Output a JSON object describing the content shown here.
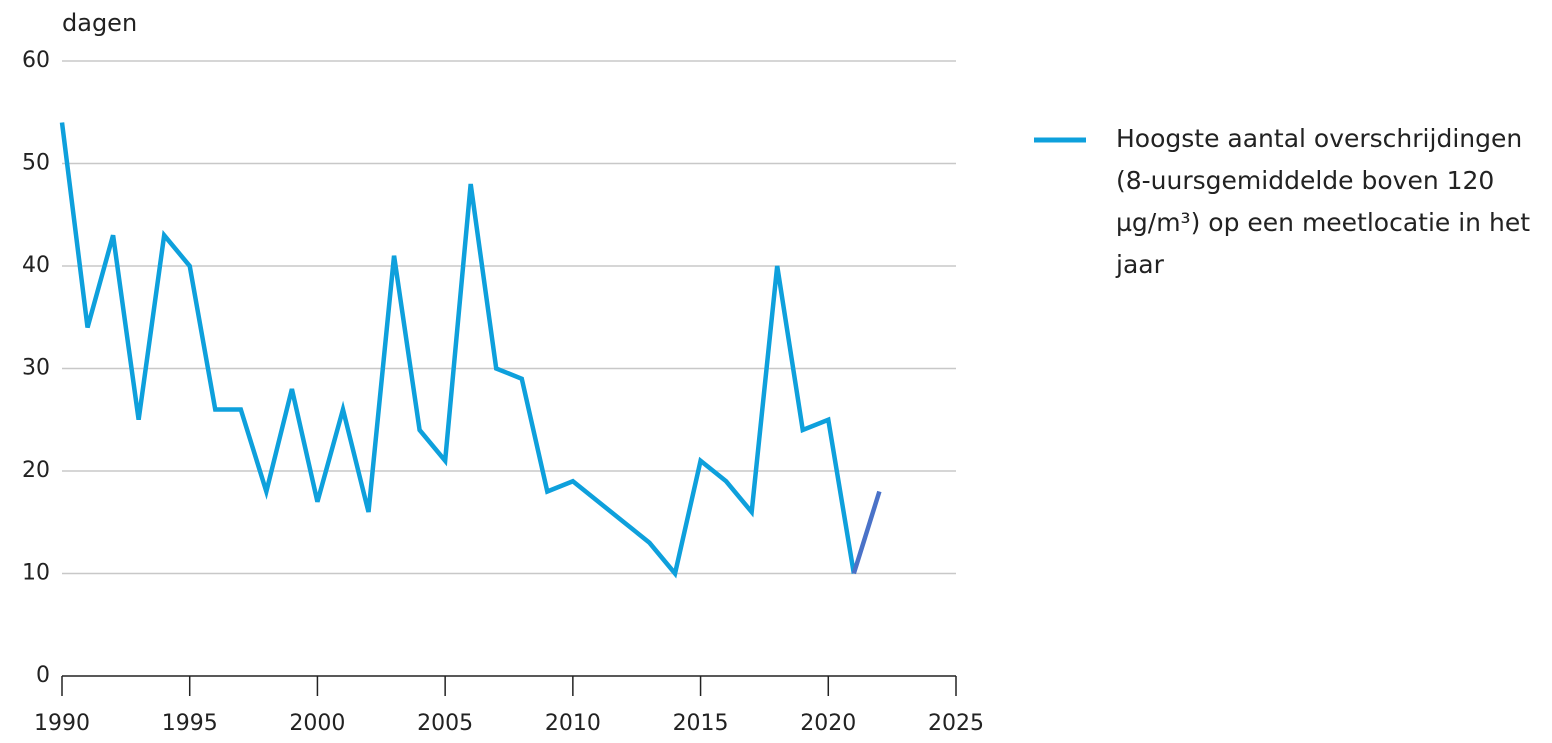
{
  "chart_data": {
    "type": "line",
    "y_label": "dagen",
    "x": [
      1990,
      1991,
      1992,
      1993,
      1994,
      1995,
      1996,
      1997,
      1998,
      1999,
      2000,
      2001,
      2002,
      2003,
      2004,
      2005,
      2006,
      2007,
      2008,
      2009,
      2010,
      2011,
      2012,
      2013,
      2014,
      2015,
      2016,
      2017,
      2018,
      2019,
      2020,
      2021,
      2022
    ],
    "series": [
      {
        "name": "Hoogste aantal overschrijdingen (8-uursgemiddelde boven 120 µg/m³) op een meetlocatie in het jaar",
        "color": "#0ea0dc",
        "values": [
          54,
          34,
          43,
          25,
          43,
          40,
          26,
          26,
          18,
          28,
          17,
          26,
          16,
          41,
          24,
          21,
          48,
          30,
          29,
          18,
          19,
          17,
          15,
          13,
          10,
          21,
          19,
          16,
          40,
          24,
          25,
          10,
          null
        ]
      },
      {
        "color": "#4a72c8",
        "values": [
          null,
          null,
          null,
          null,
          null,
          null,
          null,
          null,
          null,
          null,
          null,
          null,
          null,
          null,
          null,
          null,
          null,
          null,
          null,
          null,
          null,
          null,
          null,
          null,
          null,
          null,
          null,
          null,
          null,
          null,
          null,
          10,
          18
        ]
      }
    ],
    "xlim": [
      1990,
      2025
    ],
    "xticks": [
      1990,
      1995,
      2000,
      2005,
      2010,
      2015,
      2020,
      2025
    ],
    "ylim": [
      0,
      60
    ],
    "yticks": [
      0,
      10,
      20,
      30,
      40,
      50,
      60
    ],
    "grid": true,
    "legend": "right"
  }
}
